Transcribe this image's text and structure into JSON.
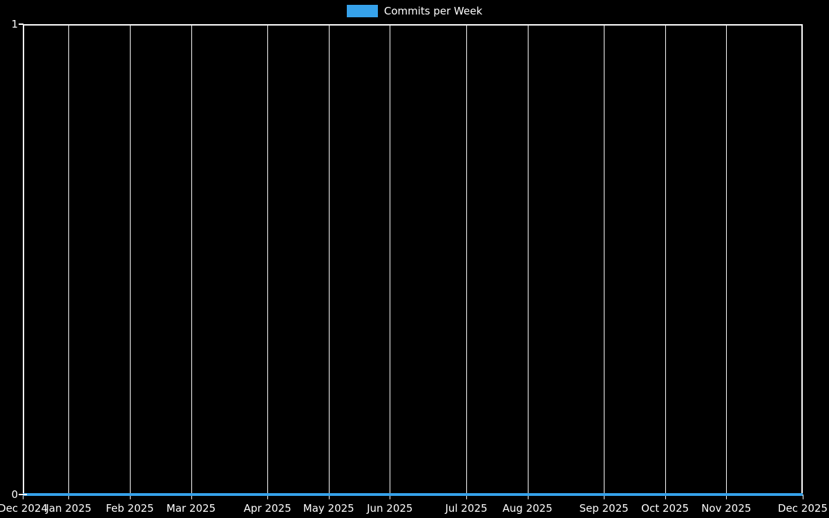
{
  "page": {
    "background_color": "#000000",
    "text_color": "#ffffff",
    "grid_color": "#ffffff"
  },
  "legend": {
    "label": "Commits per Week",
    "swatch_color": "#36a2eb",
    "position": "top"
  },
  "chart_data": {
    "type": "line",
    "title": "",
    "xlabel": "",
    "ylabel": "",
    "x_unit": "week",
    "weeks_total": 52,
    "series": [
      {
        "name": "Commits per Week",
        "color": "#36a2eb",
        "values": [
          0,
          0,
          0,
          0,
          0,
          0,
          0,
          0,
          0,
          0,
          0,
          0,
          0,
          0,
          0,
          0,
          0,
          0,
          0,
          0,
          0,
          0,
          0,
          0,
          0,
          0,
          0,
          0,
          0,
          0,
          0,
          0,
          0,
          0,
          0,
          0,
          0,
          0,
          0,
          0,
          0,
          0,
          0,
          0,
          0,
          0,
          0,
          0,
          0,
          0,
          0,
          0
        ]
      }
    ],
    "x_ticks": [
      {
        "label": "Dec 2024",
        "week": 0
      },
      {
        "label": "Jan 2025",
        "week": 3
      },
      {
        "label": "Feb 2025",
        "week": 7
      },
      {
        "label": "Mar 2025",
        "week": 11
      },
      {
        "label": "Apr 2025",
        "week": 16
      },
      {
        "label": "May 2025",
        "week": 20
      },
      {
        "label": "Jun 2025",
        "week": 24
      },
      {
        "label": "Jul 2025",
        "week": 29
      },
      {
        "label": "Aug 2025",
        "week": 33
      },
      {
        "label": "Sep 2025",
        "week": 38
      },
      {
        "label": "Oct 2025",
        "week": 42
      },
      {
        "label": "Nov 2025",
        "week": 46
      },
      {
        "label": "Dec 2025",
        "week": 51
      }
    ],
    "y_ticks": [
      {
        "label": "0",
        "value": 0
      },
      {
        "label": "1",
        "value": 1
      }
    ],
    "ylim": [
      0,
      1
    ],
    "grid": {
      "vertical": true,
      "horizontal": false
    },
    "legend_position": "top",
    "background": "#000000"
  }
}
